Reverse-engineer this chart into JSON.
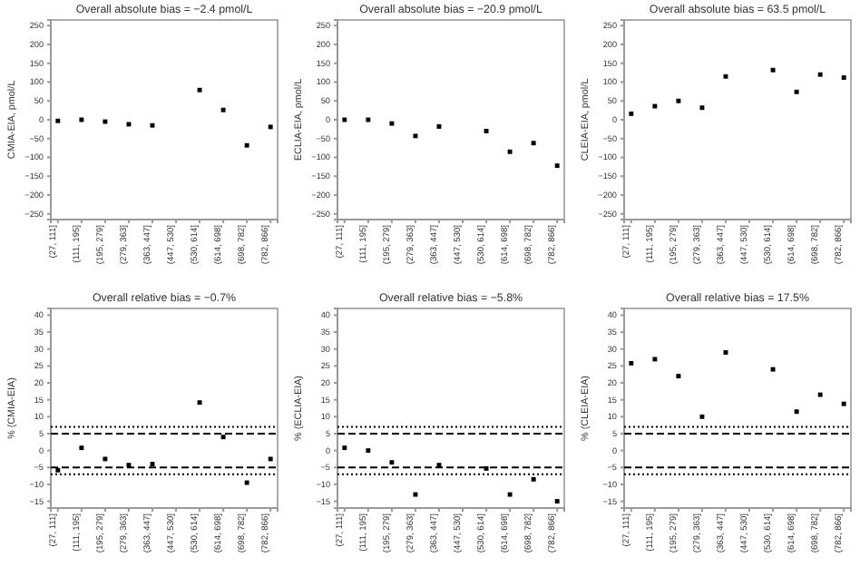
{
  "chart_data": [
    {
      "type": "scatter",
      "title": "Overall absolute bias = −2.4 pmol/L",
      "ylabel": "CMIA-EIA, pmol/L",
      "categories": [
        "(27, 111]",
        "(111, 195]",
        "(195, 279]",
        "(279, 363]",
        "(363, 447]",
        "(447, 530]",
        "(530, 614]",
        "(614, 698]",
        "(698, 782]",
        "(782, 866]"
      ],
      "values": [
        -3,
        0,
        -5,
        -12,
        -15,
        null,
        79,
        26,
        -68,
        -19
      ],
      "color": "#000000",
      "marker": "square",
      "ylim": [
        -265,
        265
      ],
      "yticks": [
        -250,
        -200,
        -150,
        -100,
        -50,
        0,
        50,
        100,
        150,
        200,
        250
      ]
    },
    {
      "type": "scatter",
      "title": "Overall absolute bias = −20.9 pmol/L",
      "ylabel": "ECLIA-EIA, pmol/L",
      "categories": [
        "(27, 111]",
        "(111, 195]",
        "(195, 279]",
        "(279, 363]",
        "(363, 447]",
        "(447, 530]",
        "(530, 614]",
        "(614, 698]",
        "(698, 782]",
        "(782, 866]"
      ],
      "values": [
        0,
        0,
        -10,
        -43,
        -18,
        null,
        -30,
        -85,
        -62,
        -122
      ],
      "color": "#000000",
      "marker": "square",
      "ylim": [
        -265,
        265
      ],
      "yticks": [
        -250,
        -200,
        -150,
        -100,
        -50,
        0,
        50,
        100,
        150,
        200,
        250
      ]
    },
    {
      "type": "scatter",
      "title": "Overall absolute bias = 63.5 pmol/L",
      "ylabel": "CLEIA-EIA, pmol/L",
      "categories": [
        "(27, 111]",
        "(111, 195]",
        "(195, 279]",
        "(279, 363]",
        "(363, 447]",
        "(447, 530]",
        "(530, 614]",
        "(614, 698]",
        "(698, 782]",
        "(782, 866]"
      ],
      "values": [
        16,
        36,
        50,
        32,
        115,
        null,
        132,
        74,
        120,
        112
      ],
      "color": "#000000",
      "marker": "square",
      "ylim": [
        -265,
        265
      ],
      "yticks": [
        -250,
        -200,
        -150,
        -100,
        -50,
        0,
        50,
        100,
        150,
        200,
        250
      ]
    },
    {
      "type": "scatter",
      "title": "Overall relative bias = −0.7%",
      "ylabel": "% (CMIA-EIA)",
      "categories": [
        "(27, 111]",
        "(111, 195]",
        "(195, 279]",
        "(279, 363]",
        "(363, 447]",
        "(447, 530]",
        "(530, 614]",
        "(614, 698]",
        "(698, 782]",
        "(782, 866]"
      ],
      "values": [
        -5.8,
        0.8,
        -2.5,
        -4.3,
        -4,
        null,
        14.2,
        4,
        -9.5,
        -2.5
      ],
      "color": "#000000",
      "marker": "square",
      "ylim": [
        -17,
        42
      ],
      "yticks": [
        -15,
        -10,
        -5,
        0,
        5,
        10,
        15,
        20,
        25,
        30,
        35,
        40
      ],
      "ref_lines": [
        {
          "axis": "y",
          "value": 5,
          "line_style": "dashed",
          "color": "#000000"
        },
        {
          "axis": "y",
          "value": -5,
          "line_style": "dashed",
          "color": "#000000"
        },
        {
          "axis": "y",
          "value": 7,
          "line_style": "dotted",
          "color": "#000000"
        },
        {
          "axis": "y",
          "value": -7,
          "line_style": "dotted",
          "color": "#000000"
        }
      ]
    },
    {
      "type": "scatter",
      "title": "Overall relative bias = −5.8%",
      "ylabel": "% (ECLIA-EIA)",
      "categories": [
        "(27, 111]",
        "(111, 195]",
        "(195, 279]",
        "(279, 363]",
        "(363, 447]",
        "(447, 530]",
        "(530, 614]",
        "(614, 698]",
        "(698, 782]",
        "(782, 866]"
      ],
      "values": [
        0.8,
        0,
        -3.5,
        -13,
        -4.3,
        null,
        -5.3,
        -13,
        -8.5,
        -15
      ],
      "color": "#000000",
      "marker": "square",
      "ylim": [
        -17,
        42
      ],
      "yticks": [
        -15,
        -10,
        -5,
        0,
        5,
        10,
        15,
        20,
        25,
        30,
        35,
        40
      ],
      "ref_lines": [
        {
          "axis": "y",
          "value": 5,
          "line_style": "dashed",
          "color": "#000000"
        },
        {
          "axis": "y",
          "value": -5,
          "line_style": "dashed",
          "color": "#000000"
        },
        {
          "axis": "y",
          "value": 7,
          "line_style": "dotted",
          "color": "#000000"
        },
        {
          "axis": "y",
          "value": -7,
          "line_style": "dotted",
          "color": "#000000"
        }
      ]
    },
    {
      "type": "scatter",
      "title": "Overall relative bias = 17.5%",
      "ylabel": "% (CLEIA-EIA)",
      "categories": [
        "(27, 111]",
        "(111, 195]",
        "(195, 279]",
        "(279, 363]",
        "(363, 447]",
        "(447, 530]",
        "(530, 614]",
        "(614, 698]",
        "(698, 782]",
        "(782, 866]"
      ],
      "values": [
        25.8,
        27,
        22,
        10,
        29,
        null,
        24,
        11.5,
        16.5,
        13.8
      ],
      "color": "#000000",
      "marker": "square",
      "ylim": [
        -17,
        42
      ],
      "yticks": [
        -15,
        -10,
        -5,
        0,
        5,
        10,
        15,
        20,
        25,
        30,
        35,
        40
      ],
      "ref_lines": [
        {
          "axis": "y",
          "value": 5,
          "line_style": "dashed",
          "color": "#000000"
        },
        {
          "axis": "y",
          "value": -5,
          "line_style": "dashed",
          "color": "#000000"
        },
        {
          "axis": "y",
          "value": 7,
          "line_style": "dotted",
          "color": "#000000"
        },
        {
          "axis": "y",
          "value": -7,
          "line_style": "dotted",
          "color": "#000000"
        }
      ]
    }
  ]
}
